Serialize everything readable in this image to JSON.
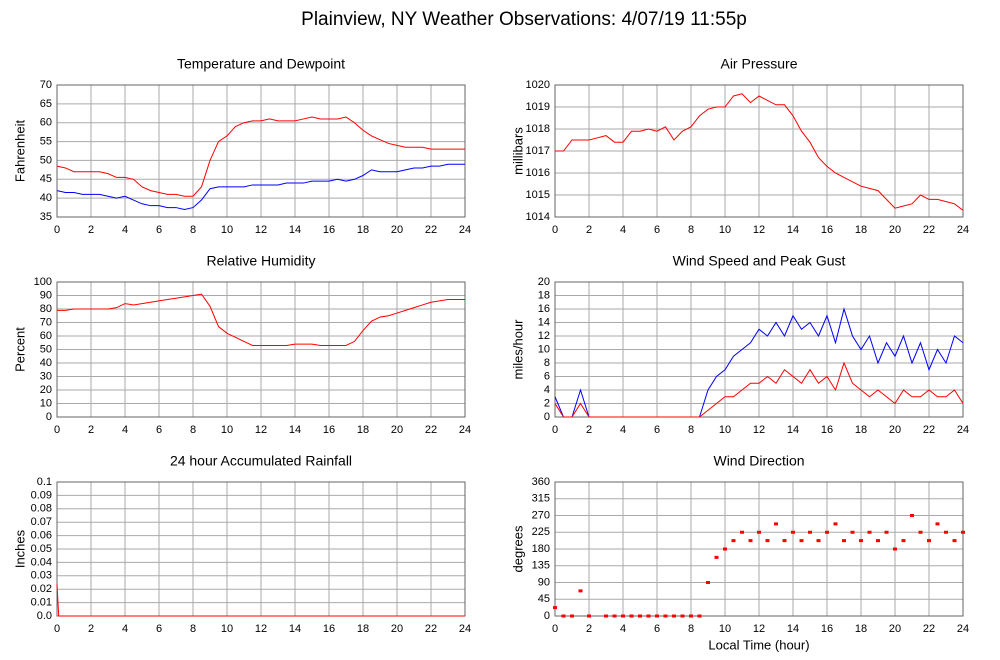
{
  "title": "Plainview, NY Weather Observations: 4/07/19 11:55p",
  "chart_data": [
    {
      "type": "line",
      "title": "Temperature and Dewpoint",
      "y_label": "Fahrenheit",
      "x": [
        0,
        0.5,
        1,
        1.5,
        2,
        2.5,
        3,
        3.5,
        4,
        4.5,
        5,
        5.5,
        6,
        6.5,
        7,
        7.5,
        8,
        8.5,
        9,
        9.5,
        10,
        10.5,
        11,
        11.5,
        12,
        12.5,
        13,
        13.5,
        14,
        14.5,
        15,
        15.5,
        16,
        16.5,
        17,
        17.5,
        18,
        18.5,
        19,
        19.5,
        20,
        20.5,
        21,
        21.5,
        22,
        22.5,
        23,
        23.5,
        24
      ],
      "xlim": [
        0,
        24
      ],
      "xticks": [
        0,
        2,
        4,
        6,
        8,
        10,
        12,
        14,
        16,
        18,
        20,
        22,
        24
      ],
      "ylim": [
        35,
        70
      ],
      "yticks": [
        35,
        40,
        45,
        50,
        55,
        60,
        65,
        70
      ],
      "grid": true,
      "series": [
        {
          "color": "#ff0000",
          "values": [
            48.5,
            48,
            47,
            47,
            47,
            47,
            46.5,
            45.5,
            45.5,
            45,
            43,
            42,
            41.5,
            41,
            41,
            40.5,
            40.5,
            43,
            50,
            55,
            56.5,
            59,
            60,
            60.5,
            60.5,
            61,
            60.5,
            60.5,
            60.5,
            61,
            61.5,
            61,
            61,
            61,
            61.5,
            60,
            58,
            56.5,
            55.5,
            54.5,
            54,
            53.5,
            53.5,
            53.5,
            53,
            53,
            53,
            53,
            53
          ]
        },
        {
          "color": "#0000ff",
          "values": [
            42,
            41.5,
            41.5,
            41,
            41,
            41,
            40.5,
            40,
            40.5,
            39.5,
            38.5,
            38,
            38,
            37.5,
            37.5,
            37,
            37.5,
            39.5,
            42.5,
            43,
            43,
            43,
            43,
            43.5,
            43.5,
            43.5,
            43.5,
            44,
            44,
            44,
            44.5,
            44.5,
            44.5,
            45,
            44.5,
            45,
            46,
            47.5,
            47,
            47,
            47,
            47.5,
            48,
            48,
            48.5,
            48.5,
            49,
            49,
            49
          ]
        }
      ]
    },
    {
      "type": "line",
      "title": "Air Pressure",
      "y_label": "millibars",
      "x": [
        0,
        0.5,
        1,
        1.5,
        2,
        2.5,
        3,
        3.5,
        4,
        4.5,
        5,
        5.5,
        6,
        6.5,
        7,
        7.5,
        8,
        8.5,
        9,
        9.5,
        10,
        10.5,
        11,
        11.5,
        12,
        12.5,
        13,
        13.5,
        14,
        14.5,
        15,
        15.5,
        16,
        16.5,
        17,
        17.5,
        18,
        18.5,
        19,
        19.5,
        20,
        20.5,
        21,
        21.5,
        22,
        22.5,
        23,
        23.5,
        24
      ],
      "xlim": [
        0,
        24
      ],
      "xticks": [
        0,
        2,
        4,
        6,
        8,
        10,
        12,
        14,
        16,
        18,
        20,
        22,
        24
      ],
      "ylim": [
        1014,
        1020
      ],
      "yticks": [
        1014,
        1015,
        1016,
        1017,
        1018,
        1019,
        1020
      ],
      "grid": true,
      "series": [
        {
          "color": "#ff0000",
          "values": [
            1017,
            1017,
            1017.5,
            1017.5,
            1017.5,
            1017.6,
            1017.7,
            1017.4,
            1017.4,
            1017.9,
            1017.9,
            1018,
            1017.9,
            1018.1,
            1017.5,
            1017.9,
            1018.1,
            1018.6,
            1018.9,
            1019,
            1019,
            1019.5,
            1019.6,
            1019.2,
            1019.5,
            1019.3,
            1019.1,
            1019.1,
            1018.6,
            1017.9,
            1017.4,
            1016.7,
            1016.3,
            1016,
            1015.8,
            1015.6,
            1015.4,
            1015.3,
            1015.2,
            1014.8,
            1014.4,
            1014.5,
            1014.6,
            1015,
            1014.8,
            1014.8,
            1014.7,
            1014.6,
            1014.3
          ]
        }
      ]
    },
    {
      "type": "line",
      "title": "Relative Humidity",
      "y_label": "Percent",
      "x": [
        0,
        0.5,
        1,
        1.5,
        2,
        2.5,
        3,
        3.5,
        4,
        4.5,
        5,
        5.5,
        6,
        6.5,
        7,
        7.5,
        8,
        8.5,
        9,
        9.5,
        10,
        10.5,
        11,
        11.5,
        12,
        12.5,
        13,
        13.5,
        14,
        14.5,
        15,
        15.5,
        16,
        16.5,
        17,
        17.5,
        18,
        18.5,
        19,
        19.5,
        20,
        20.5,
        21,
        21.5,
        22,
        22.5,
        23,
        23.5,
        24
      ],
      "xlim": [
        0,
        24
      ],
      "xticks": [
        0,
        2,
        4,
        6,
        8,
        10,
        12,
        14,
        16,
        18,
        20,
        22,
        24
      ],
      "ylim": [
        0,
        100
      ],
      "yticks": [
        0,
        10,
        20,
        30,
        40,
        50,
        60,
        70,
        80,
        90,
        100
      ],
      "grid": true,
      "series": [
        {
          "color": "#ff0000",
          "values": [
            79,
            79,
            80,
            80,
            80,
            80,
            80,
            81,
            84,
            83,
            84,
            85,
            86,
            87,
            88,
            89,
            90,
            91,
            82,
            67,
            62,
            59,
            56,
            53,
            53,
            53,
            53,
            53,
            54,
            54,
            54,
            53,
            53,
            53,
            53,
            56,
            64,
            71,
            74,
            75,
            77,
            79,
            81,
            83,
            85,
            86,
            87,
            87,
            87
          ]
        }
      ]
    },
    {
      "type": "line",
      "title": "Wind Speed and Peak Gust",
      "y_label": "miles/hour",
      "x": [
        0,
        0.5,
        1,
        1.5,
        2,
        2.5,
        3,
        3.5,
        4,
        4.5,
        5,
        5.5,
        6,
        6.5,
        7,
        7.5,
        8,
        8.5,
        9,
        9.5,
        10,
        10.5,
        11,
        11.5,
        12,
        12.5,
        13,
        13.5,
        14,
        14.5,
        15,
        15.5,
        16,
        16.5,
        17,
        17.5,
        18,
        18.5,
        19,
        19.5,
        20,
        20.5,
        21,
        21.5,
        22,
        22.5,
        23,
        23.5,
        24
      ],
      "xlim": [
        0,
        24
      ],
      "xticks": [
        0,
        2,
        4,
        6,
        8,
        10,
        12,
        14,
        16,
        18,
        20,
        22,
        24
      ],
      "ylim": [
        0,
        20
      ],
      "yticks": [
        0,
        2,
        4,
        6,
        8,
        10,
        12,
        14,
        16,
        18,
        20
      ],
      "grid": true,
      "series": [
        {
          "color": "#0000ff",
          "values": [
            3,
            0,
            0,
            4,
            0,
            0,
            0,
            0,
            0,
            0,
            0,
            0,
            0,
            0,
            0,
            0,
            0,
            0,
            4,
            6,
            7,
            9,
            10,
            11,
            13,
            12,
            14,
            12,
            15,
            13,
            14,
            12,
            15,
            11,
            16,
            12,
            10,
            12,
            8,
            11,
            9,
            12,
            8,
            11,
            7,
            10,
            8,
            12,
            11
          ]
        },
        {
          "color": "#ff0000",
          "values": [
            2,
            0,
            0,
            2,
            0,
            0,
            0,
            0,
            0,
            0,
            0,
            0,
            0,
            0,
            0,
            0,
            0,
            0,
            1,
            2,
            3,
            3,
            4,
            5,
            5,
            6,
            5,
            7,
            6,
            5,
            7,
            5,
            6,
            4,
            8,
            5,
            4,
            3,
            4,
            3,
            2,
            4,
            3,
            3,
            4,
            3,
            3,
            4,
            2
          ]
        }
      ]
    },
    {
      "type": "line",
      "title": "24 hour Accumulated Rainfall",
      "y_label": "Inches",
      "x": [
        0,
        0.1,
        24
      ],
      "xlim": [
        0,
        24
      ],
      "xticks": [
        0,
        2,
        4,
        6,
        8,
        10,
        12,
        14,
        16,
        18,
        20,
        22,
        24
      ],
      "ylim": [
        0,
        0.1
      ],
      "yticks": [
        {
          "value": 0,
          "label": "0.0"
        },
        0.01,
        0.02,
        0.03,
        0.04,
        0.05,
        0.06,
        0.07,
        0.08,
        0.09,
        0.1
      ],
      "grid": true,
      "series": [
        {
          "color": "#ff0000",
          "values": [
            0.024,
            0,
            0
          ]
        }
      ]
    },
    {
      "type": "scatter",
      "title": "Wind Direction",
      "y_label": "degrees",
      "x_label": "Local Time (hour)",
      "x": [
        0,
        0.5,
        1,
        1.5,
        2,
        2.5,
        3,
        3.5,
        4,
        4.5,
        5,
        5.5,
        6,
        6.5,
        7,
        7.5,
        8,
        8.5,
        9,
        9.5,
        10,
        10.5,
        11,
        11.5,
        12,
        12.5,
        13,
        13.5,
        14,
        14.5,
        15,
        15.5,
        16,
        16.5,
        17,
        17.5,
        18,
        18.5,
        19,
        19.5,
        20,
        20.5,
        21,
        21.5,
        22,
        22.5,
        23,
        23.5,
        24
      ],
      "xlim": [
        0,
        24
      ],
      "xticks": [
        0,
        2,
        4,
        6,
        8,
        10,
        12,
        14,
        16,
        18,
        20,
        22,
        24
      ],
      "ylim": [
        0,
        360
      ],
      "yticks": [
        0,
        45,
        90,
        135,
        180,
        225,
        270,
        315,
        360
      ],
      "grid": true,
      "series": [
        {
          "color": "#ff0000",
          "values": [
            22.5,
            0,
            0,
            67.5,
            0,
            null,
            0,
            0,
            0,
            0,
            0,
            0,
            0,
            0,
            0,
            0,
            0,
            0,
            90,
            157.5,
            180,
            202.5,
            225,
            202.5,
            225,
            202.5,
            247.5,
            202.5,
            225,
            202.5,
            225,
            202.5,
            225,
            247.5,
            202.5,
            225,
            202.5,
            225,
            202.5,
            225,
            180,
            202.5,
            270,
            225,
            202.5,
            247.5,
            225,
            202.5,
            225
          ]
        }
      ]
    }
  ]
}
